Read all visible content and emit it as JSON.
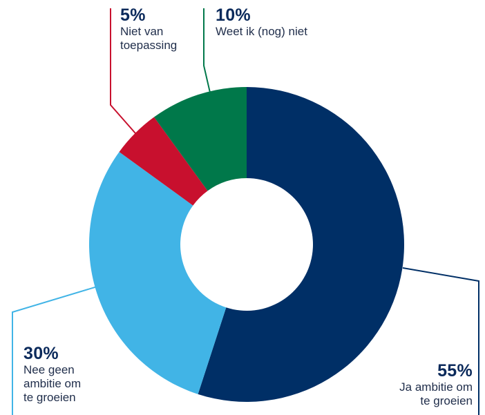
{
  "chart_data": {
    "type": "pie",
    "variant": "donut",
    "slices": [
      {
        "label": "Ja ambitie om\nte groeien",
        "percent_label": "55%",
        "value": 55,
        "color": "#002f66"
      },
      {
        "label": "Nee geen\nambitie om\nte groeien",
        "percent_label": "30%",
        "value": 30,
        "color": "#41b4e6"
      },
      {
        "label": "Niet van\ntoepassing",
        "percent_label": "5%",
        "value": 5,
        "color": "#c8102e"
      },
      {
        "label": "Weet ik (nog) niet",
        "percent_label": "10%",
        "value": 10,
        "color": "#00784a"
      }
    ],
    "start": "top",
    "direction": "clockwise"
  }
}
